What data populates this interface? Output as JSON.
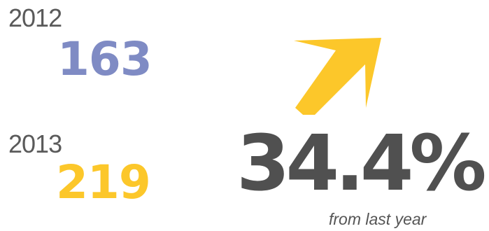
{
  "colors": {
    "year_text": "#5a5a5a",
    "value_2012": "#7f8bc4",
    "value_2013": "#fcc72a",
    "arrow": "#fcc72a",
    "percent": "#505050",
    "caption": "#555555"
  },
  "stats": [
    {
      "year": "2012",
      "value": "163"
    },
    {
      "year": "2013",
      "value": "219"
    }
  ],
  "change": {
    "icon": "up-right-arrow-icon",
    "percent": "34.4%",
    "caption": "from last year"
  }
}
